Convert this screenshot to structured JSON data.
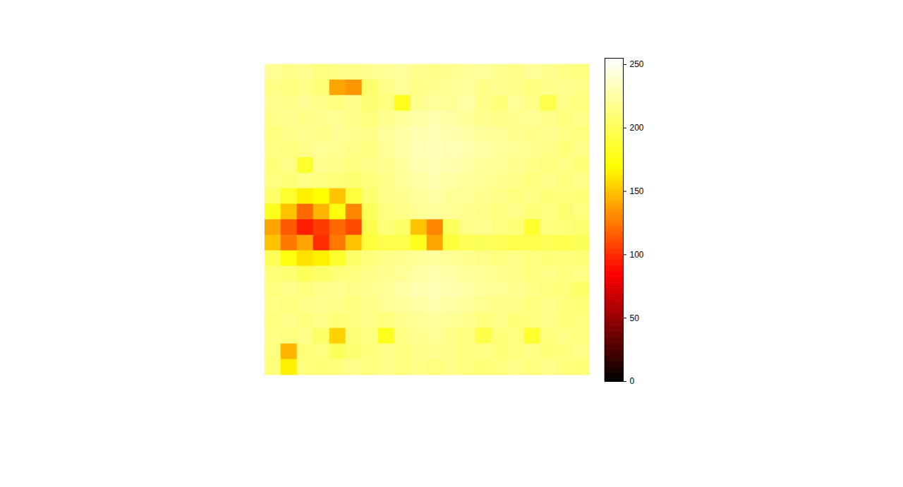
{
  "chart_data": {
    "type": "heatmap",
    "tick_labels": false,
    "color_range": [
      0,
      255
    ],
    "color_ticks": [
      0,
      50,
      100,
      150,
      200,
      250
    ],
    "cells": [
      [
        220,
        215,
        218,
        212,
        215,
        215,
        218,
        220,
        222,
        218,
        215,
        218,
        220,
        222,
        218,
        215,
        220,
        218,
        215,
        212
      ],
      [
        215,
        212,
        215,
        210,
        140,
        135,
        205,
        215,
        220,
        215,
        218,
        220,
        222,
        215,
        218,
        215,
        212,
        215,
        218,
        215
      ],
      [
        218,
        215,
        220,
        215,
        212,
        215,
        208,
        212,
        180,
        218,
        222,
        220,
        225,
        215,
        210,
        220,
        215,
        195,
        215,
        212
      ],
      [
        215,
        218,
        215,
        218,
        220,
        215,
        212,
        218,
        220,
        225,
        228,
        225,
        220,
        218,
        215,
        218,
        220,
        215,
        212,
        215
      ],
      [
        212,
        215,
        218,
        215,
        220,
        218,
        215,
        222,
        225,
        228,
        230,
        228,
        225,
        222,
        220,
        218,
        215,
        218,
        215,
        212
      ],
      [
        215,
        212,
        215,
        220,
        218,
        215,
        212,
        220,
        225,
        230,
        232,
        230,
        228,
        225,
        222,
        220,
        218,
        215,
        210,
        215
      ],
      [
        210,
        215,
        185,
        218,
        215,
        212,
        215,
        218,
        222,
        228,
        230,
        228,
        225,
        222,
        220,
        218,
        215,
        212,
        215,
        210
      ],
      [
        212,
        210,
        215,
        212,
        210,
        208,
        212,
        215,
        220,
        225,
        228,
        225,
        222,
        220,
        218,
        215,
        212,
        215,
        212,
        215
      ],
      [
        205,
        185,
        165,
        170,
        150,
        190,
        208,
        215,
        218,
        222,
        225,
        222,
        220,
        218,
        215,
        212,
        215,
        210,
        212,
        210
      ],
      [
        180,
        150,
        120,
        145,
        175,
        130,
        200,
        212,
        215,
        220,
        222,
        220,
        218,
        215,
        212,
        215,
        210,
        212,
        208,
        212
      ],
      [
        140,
        115,
        95,
        105,
        120,
        110,
        195,
        210,
        205,
        150,
        130,
        200,
        215,
        218,
        212,
        210,
        185,
        212,
        210,
        208
      ],
      [
        150,
        125,
        140,
        100,
        125,
        150,
        190,
        195,
        195,
        180,
        140,
        190,
        198,
        200,
        198,
        195,
        195,
        198,
        195,
        200
      ],
      [
        200,
        175,
        160,
        165,
        185,
        205,
        212,
        215,
        218,
        220,
        222,
        220,
        218,
        215,
        212,
        215,
        212,
        210,
        212,
        210
      ],
      [
        210,
        208,
        200,
        205,
        210,
        212,
        215,
        218,
        220,
        225,
        228,
        225,
        222,
        220,
        218,
        215,
        212,
        215,
        212,
        215
      ],
      [
        212,
        215,
        212,
        215,
        218,
        215,
        218,
        220,
        225,
        228,
        230,
        228,
        225,
        222,
        220,
        218,
        215,
        212,
        210,
        205
      ],
      [
        215,
        212,
        215,
        218,
        215,
        212,
        215,
        220,
        222,
        225,
        228,
        225,
        222,
        218,
        215,
        215,
        212,
        215,
        212,
        210
      ],
      [
        212,
        215,
        212,
        215,
        210,
        212,
        215,
        212,
        218,
        220,
        222,
        220,
        218,
        212,
        215,
        210,
        212,
        215,
        210,
        212
      ],
      [
        215,
        212,
        215,
        205,
        155,
        210,
        212,
        180,
        215,
        218,
        220,
        215,
        212,
        195,
        210,
        212,
        185,
        212,
        215,
        212
      ],
      [
        212,
        145,
        210,
        212,
        200,
        208,
        212,
        215,
        212,
        215,
        218,
        215,
        212,
        215,
        210,
        212,
        215,
        210,
        212,
        215
      ],
      [
        210,
        165,
        212,
        210,
        212,
        215,
        212,
        215,
        212,
        215,
        212,
        215,
        212,
        210,
        212,
        215,
        212,
        215,
        212,
        210
      ]
    ]
  }
}
